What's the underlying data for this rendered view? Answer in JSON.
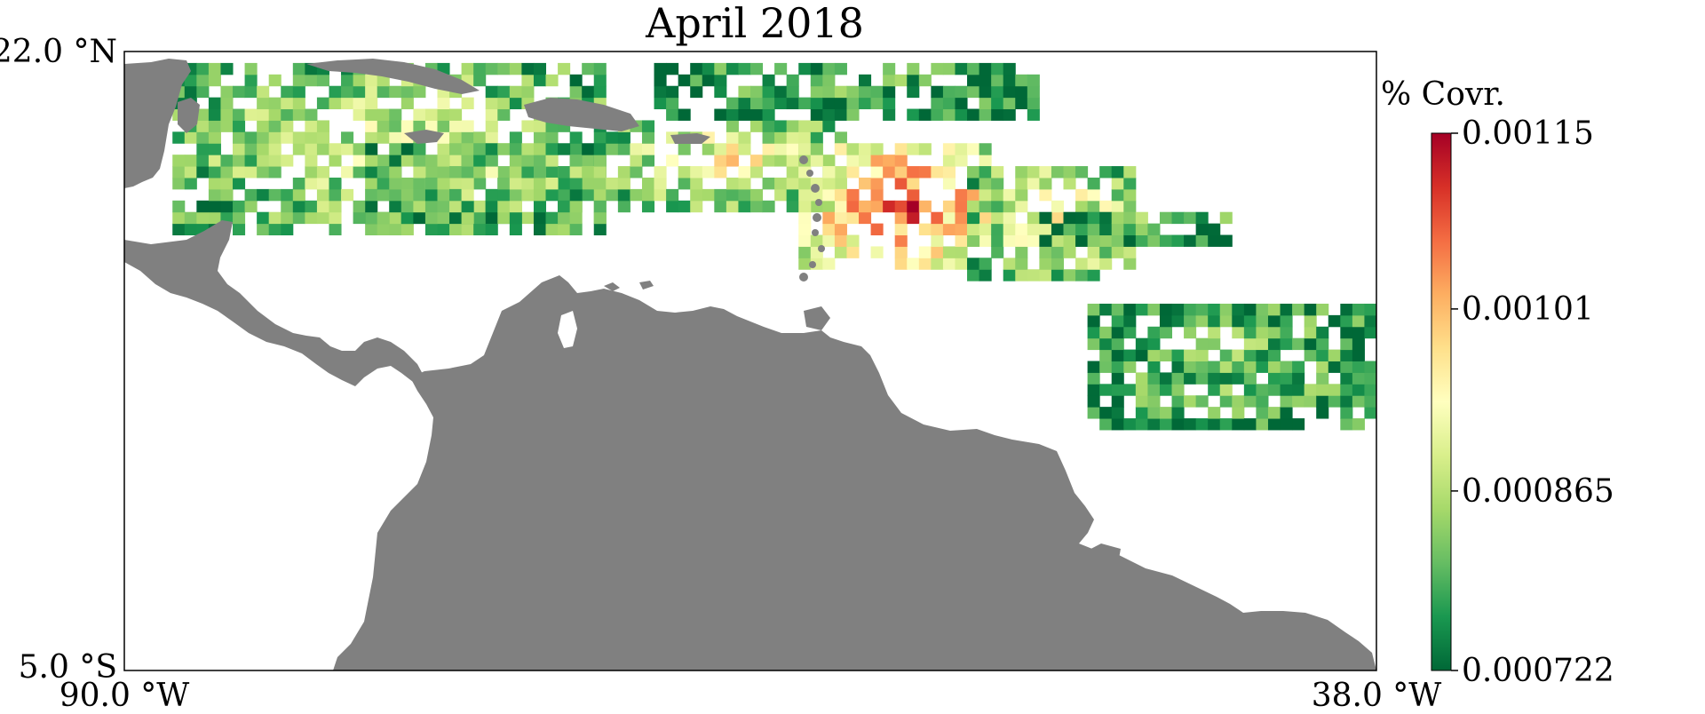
{
  "title": "April 2018",
  "axes": {
    "lat_top_label": "22.0 °N",
    "lat_bottom_label": "5.0 °S",
    "lon_left_label": "90.0 °W",
    "lon_right_label": "38.0 °W"
  },
  "colorbar": {
    "title": "% Covr.",
    "min": 0.000722,
    "max": 0.00115,
    "tick_labels": [
      "0.00115",
      "0.00101",
      "0.000865",
      "0.000722"
    ],
    "tick_values": [
      0.00115,
      0.00101,
      0.000865,
      0.000722
    ],
    "colormap": "RdYlGn_r",
    "colors": [
      "#006837",
      "#1a9850",
      "#66bd63",
      "#a6d96a",
      "#d9ef8b",
      "#ffffbf",
      "#fee08b",
      "#fdae61",
      "#f46d43",
      "#d73027",
      "#a50026"
    ]
  },
  "colors": {
    "land": "#808080",
    "ocean": "#ffffff",
    "frame": "#000000"
  },
  "chart_data": {
    "type": "heatmap",
    "title": "April 2018",
    "xlabel": "",
    "ylabel": "",
    "xlim": [
      -90.0,
      -38.0
    ],
    "ylim": [
      -5.0,
      22.0
    ],
    "value_range": [
      0.000722,
      0.00115
    ],
    "regions": [
      {
        "lon": [
          -88,
          -70
        ],
        "lat": [
          14,
          21.5
        ],
        "level": 0.35
      },
      {
        "lon": [
          -80,
          -70
        ],
        "lat": [
          14.5,
          18
        ],
        "level": 0.3
      },
      {
        "lon": [
          -70,
          -60
        ],
        "lat": [
          15,
          19
        ],
        "level": 0.45
      },
      {
        "lon": [
          -62,
          -54
        ],
        "lat": [
          12.5,
          18
        ],
        "level": 0.8
      },
      {
        "lon": [
          -55,
          -48
        ],
        "lat": [
          12,
          17
        ],
        "level": 0.45
      },
      {
        "lon": [
          -68,
          -52
        ],
        "lat": [
          19,
          21.5
        ],
        "level": 0.15
      },
      {
        "lon": [
          -52,
          -44
        ],
        "lat": [
          13.5,
          15
        ],
        "level": 0.2
      },
      {
        "lon": [
          -50,
          -38
        ],
        "lat": [
          5.5,
          11
        ],
        "level": 0.2
      }
    ]
  }
}
